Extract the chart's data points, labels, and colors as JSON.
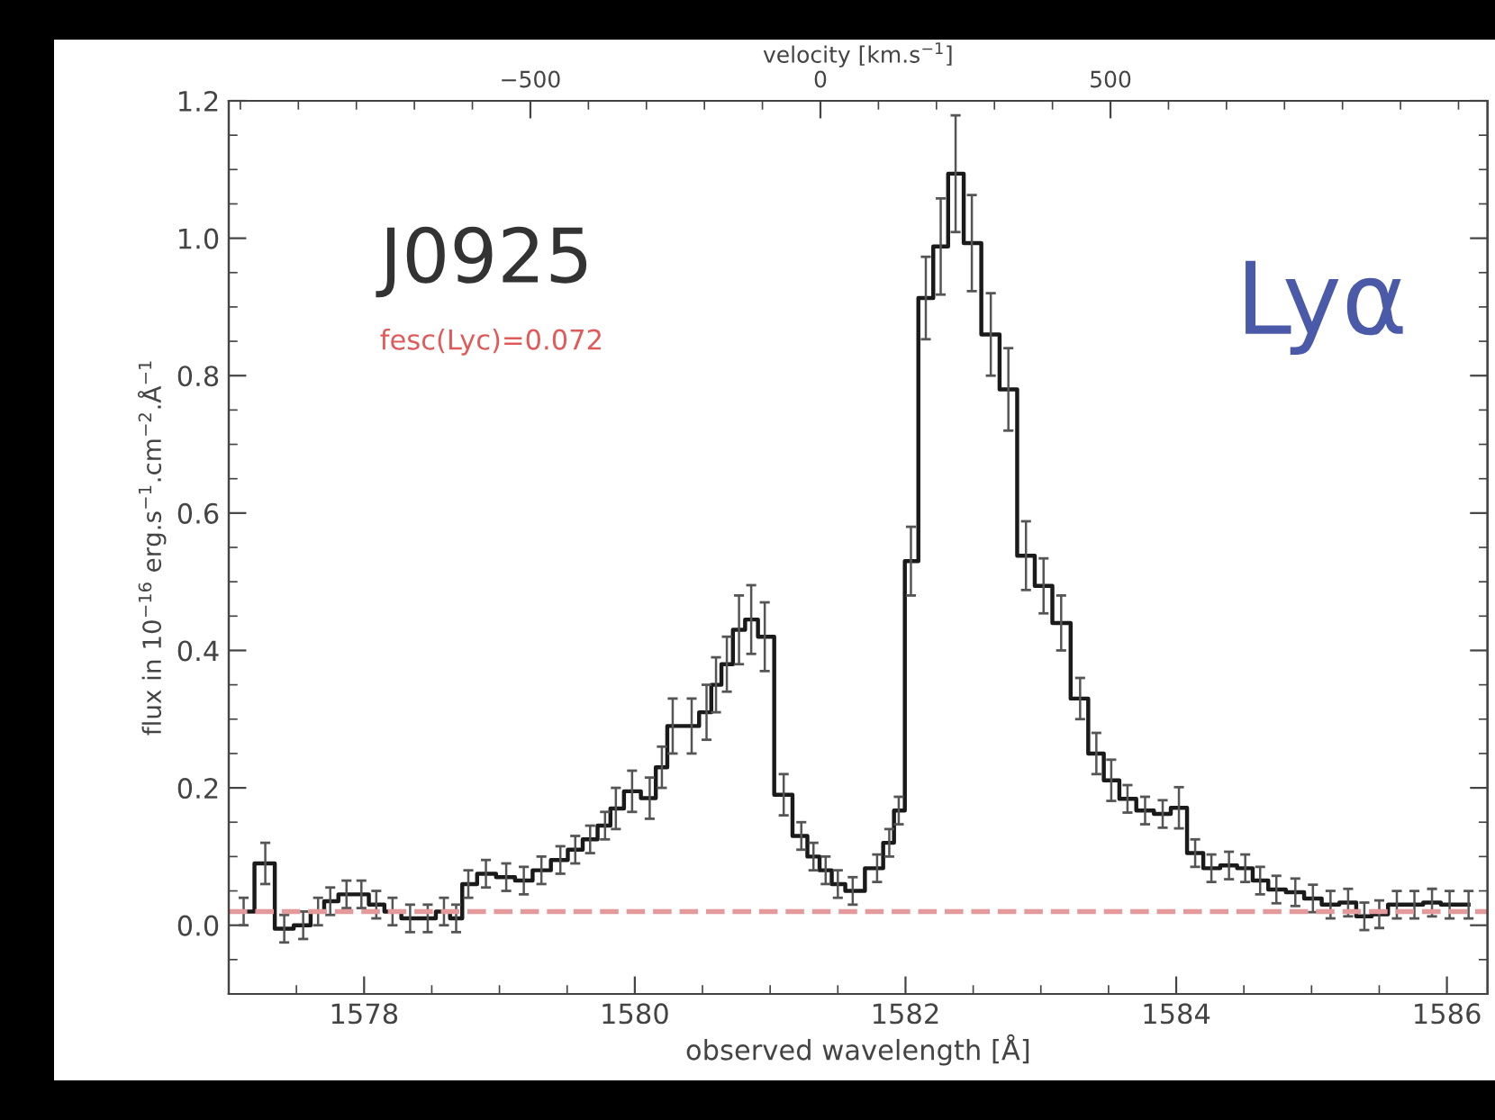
{
  "chart_data": {
    "type": "step",
    "xlabel": "observed wavelength [Å]",
    "ylabel": "flux in 10$^{−16}$ erg.s$^{−1}$.cm$^{−2}$.Å$^{−1}$",
    "x2label": "velocity [km.s$^{−1}$]",
    "xlim": [
      1577,
      1586.3
    ],
    "xticks": [
      1578,
      1580,
      1582,
      1584,
      1586
    ],
    "ylim": [
      -0.1,
      1.2
    ],
    "yticks": [
      {
        "value": 0,
        "label": "0.0"
      },
      0.2,
      0.4,
      0.6,
      0.8,
      {
        "value": 1,
        "label": "1.0"
      },
      1.2
    ],
    "x2lim": [
      -1020,
      1150
    ],
    "x2ticks": [
      {
        "value": -500,
        "label": "−500"
      },
      0,
      500
    ],
    "marker": "none",
    "line_style": "solid",
    "grid": false,
    "legend": false,
    "series": [
      {
        "color": "#1a1a1a",
        "x": [
          1577.11,
          1577.27,
          1577.41,
          1577.55,
          1577.66,
          1577.75,
          1577.87,
          1577.98,
          1578.09,
          1578.21,
          1578.34,
          1578.47,
          1578.59,
          1578.68,
          1578.77,
          1578.9,
          1579.05,
          1579.18,
          1579.31,
          1579.45,
          1579.56,
          1579.67,
          1579.78,
          1579.86,
          1579.98,
          1580.11,
          1580.2,
          1580.28,
          1580.42,
          1580.53,
          1580.6,
          1580.68,
          1580.77,
          1580.86,
          1580.96,
          1581.1,
          1581.23,
          1581.32,
          1581.41,
          1581.5,
          1581.61,
          1581.79,
          1581.88,
          1581.95,
          1582.04,
          1582.15,
          1582.26,
          1582.37,
          1582.49,
          1582.63,
          1582.76,
          1582.89,
          1583.02,
          1583.15,
          1583.29,
          1583.41,
          1583.52,
          1583.64,
          1583.77,
          1583.9,
          1584.02,
          1584.14,
          1584.26,
          1584.39,
          1584.51,
          1584.62,
          1584.74,
          1584.88,
          1585.01,
          1585.14,
          1585.27,
          1585.39,
          1585.5,
          1585.63,
          1585.76,
          1585.89,
          1586.02,
          1586.16
        ],
        "values": [
          0.02,
          0.09,
          -0.005,
          0.0,
          0.02,
          0.035,
          0.045,
          0.045,
          0.03,
          0.02,
          0.01,
          0.01,
          0.02,
          0.01,
          0.06,
          0.075,
          0.07,
          0.065,
          0.08,
          0.095,
          0.11,
          0.125,
          0.145,
          0.17,
          0.195,
          0.185,
          0.23,
          0.29,
          0.29,
          0.31,
          0.35,
          0.38,
          0.43,
          0.445,
          0.42,
          0.19,
          0.13,
          0.1,
          0.08,
          0.06,
          0.05,
          0.083,
          0.12,
          0.167,
          0.53,
          0.913,
          0.988,
          1.094,
          0.993,
          0.86,
          0.78,
          0.538,
          0.494,
          0.44,
          0.33,
          0.25,
          0.211,
          0.184,
          0.167,
          0.162,
          0.171,
          0.105,
          0.083,
          0.087,
          0.083,
          0.065,
          0.052,
          0.048,
          0.039,
          0.03,
          0.033,
          0.013,
          0.016,
          0.03,
          0.03,
          0.033,
          0.03,
          0.03
        ],
        "errors": [
          0.02,
          0.03,
          0.02,
          0.02,
          0.02,
          0.02,
          0.02,
          0.02,
          0.02,
          0.02,
          0.02,
          0.02,
          0.02,
          0.02,
          0.02,
          0.02,
          0.02,
          0.02,
          0.02,
          0.02,
          0.02,
          0.02,
          0.02,
          0.03,
          0.03,
          0.03,
          0.03,
          0.04,
          0.04,
          0.04,
          0.04,
          0.04,
          0.05,
          0.05,
          0.05,
          0.03,
          0.02,
          0.02,
          0.02,
          0.02,
          0.02,
          0.02,
          0.02,
          0.02,
          0.05,
          0.06,
          0.07,
          0.085,
          0.07,
          0.06,
          0.06,
          0.05,
          0.04,
          0.04,
          0.03,
          0.03,
          0.03,
          0.02,
          0.02,
          0.02,
          0.03,
          0.02,
          0.02,
          0.02,
          0.02,
          0.02,
          0.02,
          0.02,
          0.02,
          0.02,
          0.02,
          0.02,
          0.02,
          0.02,
          0.02,
          0.02,
          0.02,
          0.02
        ]
      }
    ],
    "ref_lines": [
      {
        "axis": "y",
        "value": 0.02,
        "color": "#e49a9a",
        "line_style": "dashed"
      }
    ],
    "annotations": [
      "J0925",
      "fesc(Lyc)=0.072",
      "Lyα"
    ]
  }
}
